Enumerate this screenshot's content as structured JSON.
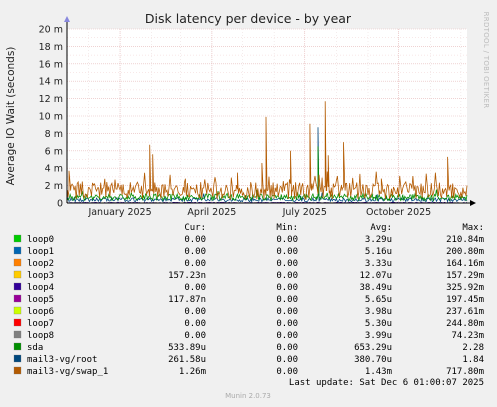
{
  "chart_data": {
    "type": "line",
    "title": "Disk latency per device - by year",
    "ylabel": "Average IO Wait (seconds)",
    "ylim": [
      0,
      20
    ],
    "y_ticks": [
      "0",
      "2 m",
      "4 m",
      "6 m",
      "8 m",
      "10 m",
      "12 m",
      "14 m",
      "16 m",
      "18 m",
      "20 m"
    ],
    "y_tick_values": [
      0,
      2,
      4,
      6,
      8,
      10,
      12,
      14,
      16,
      18,
      20
    ],
    "x_tick_labels": [
      "January 2025",
      "April 2025",
      "July 2025",
      "October 2025"
    ],
    "x_tick_dates": [
      "2025-01-01",
      "2025-04-01",
      "2025-07-01",
      "2025-10-01"
    ],
    "x_range": [
      "2024-11-10",
      "2025-12-07"
    ],
    "grid": true,
    "series": [
      {
        "name": "loop0",
        "color": "#00cc00",
        "cur": "0.00",
        "min": "0.00",
        "avg": "3.29u",
        "max": "210.84m"
      },
      {
        "name": "loop1",
        "color": "#0066b3",
        "cur": "0.00",
        "min": "0.00",
        "avg": "5.16u",
        "max": "200.80m"
      },
      {
        "name": "loop2",
        "color": "#ff8000",
        "cur": "0.00",
        "min": "0.00",
        "avg": "3.33u",
        "max": "164.16m"
      },
      {
        "name": "loop3",
        "color": "#ffcc00",
        "cur": "157.23n",
        "min": "0.00",
        "avg": "12.07u",
        "max": "157.29m"
      },
      {
        "name": "loop4",
        "color": "#330099",
        "cur": "0.00",
        "min": "0.00",
        "avg": "38.49u",
        "max": "325.92m"
      },
      {
        "name": "loop5",
        "color": "#990099",
        "cur": "117.87n",
        "min": "0.00",
        "avg": "5.65u",
        "max": "197.45m"
      },
      {
        "name": "loop6",
        "color": "#ccff00",
        "cur": "0.00",
        "min": "0.00",
        "avg": "3.98u",
        "max": "237.61m"
      },
      {
        "name": "loop7",
        "color": "#ff0000",
        "cur": "0.00",
        "min": "0.00",
        "avg": "5.30u",
        "max": "244.80m"
      },
      {
        "name": "loop8",
        "color": "#808080",
        "cur": "0.00",
        "min": "0.00",
        "avg": "3.99u",
        "max": "74.23m"
      },
      {
        "name": "sda",
        "color": "#008f00",
        "cur": "533.89u",
        "min": "0.00",
        "avg": "653.29u",
        "max": "2.28"
      },
      {
        "name": "mail3-vg/root",
        "color": "#00487d",
        "cur": "261.58u",
        "min": "0.00",
        "avg": "380.70u",
        "max": "1.84"
      },
      {
        "name": "mail3-vg/swap_1",
        "color": "#b35a00",
        "cur": "1.26m",
        "min": "0.00",
        "avg": "1.43m",
        "max": "717.80m"
      }
    ],
    "spikes": [
      {
        "series": 11,
        "date": "2024-11-12",
        "y": 3.7
      },
      {
        "series": 11,
        "date": "2025-01-30",
        "y": 6.7
      },
      {
        "series": 11,
        "date": "2025-02-02",
        "y": 5.6
      },
      {
        "series": 11,
        "date": "2025-03-05",
        "y": 2.3
      },
      {
        "series": 11,
        "date": "2025-04-26",
        "y": 3.5
      },
      {
        "series": 11,
        "date": "2025-05-20",
        "y": 4.6
      },
      {
        "series": 11,
        "date": "2025-05-24",
        "y": 9.9
      },
      {
        "series": 11,
        "date": "2025-06-17",
        "y": 6.0
      },
      {
        "series": 11,
        "date": "2025-07-06",
        "y": 9.1
      },
      {
        "series": 11,
        "date": "2025-07-21",
        "y": 11.7
      },
      {
        "series": 11,
        "date": "2025-07-24",
        "y": 5.5
      },
      {
        "series": 11,
        "date": "2025-08-08",
        "y": 7.0
      },
      {
        "series": 11,
        "date": "2025-09-14",
        "y": 2.8
      },
      {
        "series": 11,
        "date": "2025-11-18",
        "y": 5.3
      },
      {
        "series": 10,
        "date": "2025-07-14",
        "y": 8.7
      },
      {
        "series": 9,
        "date": "2025-07-14",
        "y": 6.5
      },
      {
        "series": 9,
        "date": "2025-05-15",
        "y": 1.5
      },
      {
        "series": 9,
        "date": "2025-09-05",
        "y": 1.2
      }
    ]
  },
  "legend_headers": {
    "cur": "Cur:",
    "min": "Min:",
    "avg": "Avg:",
    "max": "Max:"
  },
  "last_update": "Last update: Sat Dec  6 01:00:07 2025",
  "footer": "Munin 2.0.73",
  "side_label": "RRDTOOL / TOBI OETIKER"
}
